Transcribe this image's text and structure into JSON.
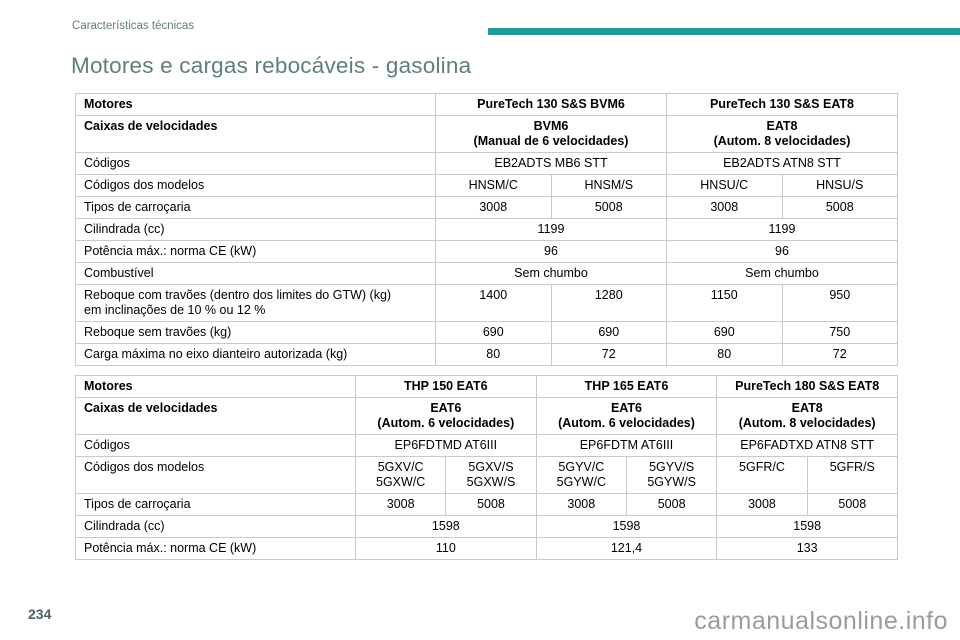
{
  "page": {
    "breadcrumb": "Características técnicas",
    "title": "Motores e cargas rebocáveis - gasolina",
    "page_number": "234",
    "watermark": "carmanualsonline.info",
    "accent_color": "#21999b",
    "title_color": "#607e7e"
  },
  "tables": [
    {
      "label_col_width": 360,
      "sub_col_count": 4,
      "rows": [
        {
          "label": "Motores",
          "bold": true,
          "cells": [
            {
              "text": "PureTech 130 S&S BVM6",
              "span": 2
            },
            {
              "text": "PureTech 130 S&S EAT8",
              "span": 2
            }
          ]
        },
        {
          "label": "Caixas de velocidades",
          "bold": true,
          "cells": [
            {
              "text": "BVM6\n(Manual de 6 velocidades)",
              "span": 2
            },
            {
              "text": "EAT8\n(Autom. 8 velocidades)",
              "span": 2
            }
          ]
        },
        {
          "label": "Códigos",
          "cells": [
            {
              "text": "EB2ADTS MB6 STT",
              "span": 2
            },
            {
              "text": "EB2ADTS ATN8 STT",
              "span": 2
            }
          ]
        },
        {
          "label": "Códigos dos modelos",
          "cells": [
            {
              "text": "HNSM/C"
            },
            {
              "text": "HNSM/S"
            },
            {
              "text": "HNSU/C"
            },
            {
              "text": "HNSU/S"
            }
          ]
        },
        {
          "label": "Tipos de carroçaria",
          "cells": [
            {
              "text": "3008"
            },
            {
              "text": "5008"
            },
            {
              "text": "3008"
            },
            {
              "text": "5008"
            }
          ]
        },
        {
          "label": "Cilindrada (cc)",
          "cells": [
            {
              "text": "1199",
              "span": 2
            },
            {
              "text": "1199",
              "span": 2
            }
          ]
        },
        {
          "label": "Potência máx.: norma CE (kW)",
          "cells": [
            {
              "text": "96",
              "span": 2
            },
            {
              "text": "96",
              "span": 2
            }
          ]
        },
        {
          "label": "Combustível",
          "cells": [
            {
              "text": "Sem chumbo",
              "span": 2
            },
            {
              "text": "Sem chumbo",
              "span": 2
            }
          ]
        },
        {
          "label": "Reboque com travões (dentro dos limites do GTW) (kg)\nem inclinações de 10 % ou 12 %",
          "cells": [
            {
              "text": "1400"
            },
            {
              "text": "1280"
            },
            {
              "text": "1150"
            },
            {
              "text": "950"
            }
          ]
        },
        {
          "label": "Reboque sem travões (kg)",
          "cells": [
            {
              "text": "690"
            },
            {
              "text": "690"
            },
            {
              "text": "690"
            },
            {
              "text": "750"
            }
          ]
        },
        {
          "label": "Carga máxima no eixo dianteiro autorizada (kg)",
          "cells": [
            {
              "text": "80"
            },
            {
              "text": "72"
            },
            {
              "text": "80"
            },
            {
              "text": "72"
            }
          ]
        }
      ]
    },
    {
      "label_col_width": 280,
      "sub_col_count": 6,
      "rows": [
        {
          "label": "Motores",
          "bold": true,
          "cells": [
            {
              "text": "THP 150 EAT6",
              "span": 2
            },
            {
              "text": "THP 165 EAT6",
              "span": 2
            },
            {
              "text": "PureTech 180 S&S EAT8",
              "span": 2
            }
          ]
        },
        {
          "label": "Caixas de velocidades",
          "bold": true,
          "cells": [
            {
              "text": "EAT6\n(Autom. 6 velocidades)",
              "span": 2
            },
            {
              "text": "EAT6\n(Autom. 6 velocidades)",
              "span": 2
            },
            {
              "text": "EAT8\n(Autom. 8 velocidades)",
              "span": 2
            }
          ]
        },
        {
          "label": "Códigos",
          "cells": [
            {
              "text": "EP6FDTMD AT6III",
              "span": 2
            },
            {
              "text": "EP6FDTM AT6III",
              "span": 2
            },
            {
              "text": "EP6FADTXD ATN8 STT",
              "span": 2
            }
          ]
        },
        {
          "label": "Códigos dos modelos",
          "cells": [
            {
              "text": "5GXV/C\n5GXW/C"
            },
            {
              "text": "5GXV/S\n5GXW/S"
            },
            {
              "text": "5GYV/C\n5GYW/C"
            },
            {
              "text": "5GYV/S\n5GYW/S"
            },
            {
              "text": "5GFR/C"
            },
            {
              "text": "5GFR/S"
            }
          ]
        },
        {
          "label": "Tipos de carroçaria",
          "cells": [
            {
              "text": "3008"
            },
            {
              "text": "5008"
            },
            {
              "text": "3008"
            },
            {
              "text": "5008"
            },
            {
              "text": "3008"
            },
            {
              "text": "5008"
            }
          ]
        },
        {
          "label": "Cilindrada (cc)",
          "cells": [
            {
              "text": "1598",
              "span": 2
            },
            {
              "text": "1598",
              "span": 2
            },
            {
              "text": "1598",
              "span": 2
            }
          ]
        },
        {
          "label": "Potência máx.: norma CE (kW)",
          "cells": [
            {
              "text": "110",
              "span": 2
            },
            {
              "text": "121,4",
              "span": 2
            },
            {
              "text": "133",
              "span": 2
            }
          ]
        }
      ]
    }
  ]
}
